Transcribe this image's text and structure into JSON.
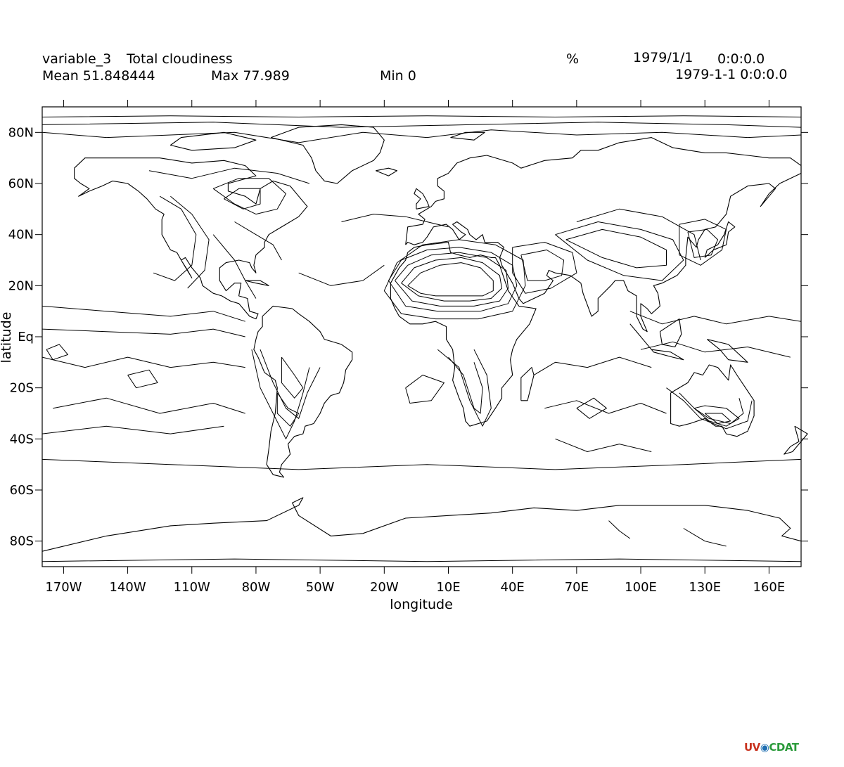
{
  "header": {
    "variable_name": "variable_3",
    "long_name": "Total cloudiness",
    "units": "%",
    "date1": "1979/1/1",
    "time1": "0:0:0.0",
    "date2": "1979-1-1 0:0:0.0",
    "mean": "Mean 51.848444",
    "max": "Max 77.989",
    "min": "Min 0"
  },
  "axes": {
    "x_title": "longitude",
    "y_title": "latitude",
    "x_ticks": [
      {
        "lon": -170,
        "label": "170W"
      },
      {
        "lon": -140,
        "label": "140W"
      },
      {
        "lon": -110,
        "label": "110W"
      },
      {
        "lon": -80,
        "label": "80W"
      },
      {
        "lon": -50,
        "label": "50W"
      },
      {
        "lon": -20,
        "label": "20W"
      },
      {
        "lon": 10,
        "label": "10E"
      },
      {
        "lon": 40,
        "label": "40E"
      },
      {
        "lon": 70,
        "label": "70E"
      },
      {
        "lon": 100,
        "label": "100E"
      },
      {
        "lon": 130,
        "label": "130E"
      },
      {
        "lon": 160,
        "label": "160E"
      }
    ],
    "y_ticks": [
      {
        "lat": 80,
        "label": "80N"
      },
      {
        "lat": 60,
        "label": "60N"
      },
      {
        "lat": 40,
        "label": "40N"
      },
      {
        "lat": 20,
        "label": "20N"
      },
      {
        "lat": 0,
        "label": "Eq"
      },
      {
        "lat": -20,
        "label": "20S"
      },
      {
        "lat": -40,
        "label": "40S"
      },
      {
        "lat": -60,
        "label": "60S"
      },
      {
        "lat": -80,
        "label": "80S"
      }
    ],
    "lon_range": [
      -180,
      175
    ],
    "lat_range": [
      -90,
      90
    ]
  },
  "map": {
    "projection": "cylindrical equidistant",
    "content": "contour lines over coastlines",
    "line_color": "#000000"
  },
  "logo": {
    "text_uv": "UV",
    "text_cdat": "CDAT"
  }
}
